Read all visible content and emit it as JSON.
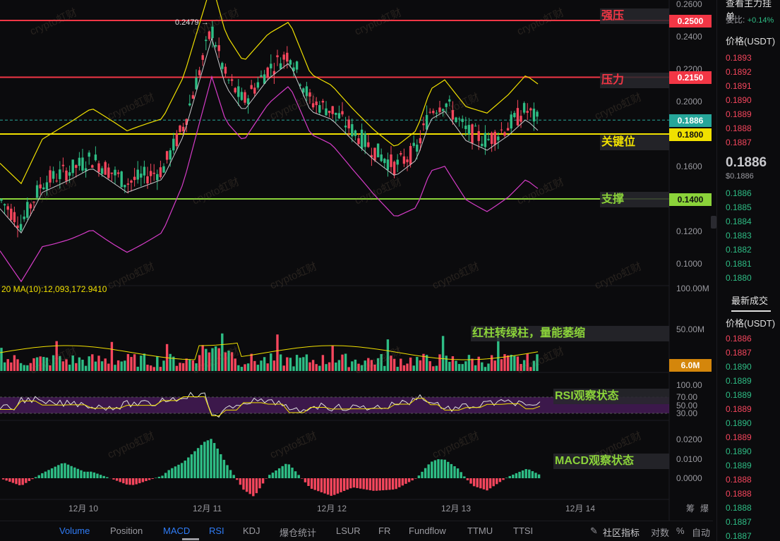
{
  "chart_data": {
    "type": "candlestick",
    "price_axis": {
      "ticks": [
        "0.2600",
        "0.2400",
        "0.2200",
        "0.2000",
        "0.1800",
        "0.1600",
        "0.1400",
        "0.1200",
        "0.1000"
      ],
      "range": [
        0.092,
        0.262
      ]
    },
    "dates": [
      "12月 10",
      "12月 11",
      "12月 12",
      "12月 13",
      "12月 14"
    ],
    "levels": [
      {
        "name": "强压",
        "price": "0.2500",
        "color": "#f23645"
      },
      {
        "name": "压力",
        "price": "0.2150",
        "color": "#f23645"
      },
      {
        "name": "关键位",
        "price": "0.1800",
        "color": "#f0e000"
      },
      {
        "name": "支撑",
        "price": "0.1400",
        "color": "#8bd33a"
      }
    ],
    "current_price": "0.1886",
    "high_annotation": "0.2479",
    "volume": {
      "ma_label": "20  MA(10):12,093,172.9410",
      "ticks": [
        "100.00M",
        "50.00M"
      ],
      "current": "6.0M",
      "annotation": "红柱转绿柱，量能萎缩"
    },
    "rsi": {
      "ticks": [
        "100.00",
        "70.00",
        "50.00",
        "30.00"
      ],
      "annotation": "RSI观察状态"
    },
    "macd": {
      "ticks": [
        "0.0200",
        "0.0100",
        "0.0000"
      ],
      "annotation": "MACD观察状态"
    }
  },
  "watermark_text": "crypto虹财",
  "bottom_tabs": [
    "Volume",
    "Position",
    "MACD",
    "RSI",
    "KDJ",
    "爆仓统计",
    "LSUR",
    "FR",
    "Fundflow",
    "TTMU",
    "TTSI"
  ],
  "active_tabs": [
    "Volume",
    "MACD",
    "RSI"
  ],
  "bottom_right": {
    "community": "社区指标",
    "scale": "对数",
    "percent": "%",
    "auto": "自动"
  },
  "top_right_axis": {
    "zoom": "筹",
    "burst": "爆"
  },
  "right_panel": {
    "title": "查看主力挂单",
    "weibi_label": "委比:",
    "weibi_value": "+0.14%",
    "price_header": "价格(USDT)",
    "asks": [
      "0.1893",
      "0.1892",
      "0.1891",
      "0.1890",
      "0.1889",
      "0.1888",
      "0.1887"
    ],
    "last_price": "0.1886",
    "last_price_usd": "$0.1886",
    "bids": [
      "0.1886",
      "0.1885",
      "0.1884",
      "0.1883",
      "0.1882",
      "0.1881",
      "0.1880"
    ],
    "trades_title": "最新成交",
    "trades_header": "价格(USDT)",
    "trades": [
      {
        "price": "0.1886",
        "side": "sell"
      },
      {
        "price": "0.1887",
        "side": "sell"
      },
      {
        "price": "0.1890",
        "side": "buy"
      },
      {
        "price": "0.1889",
        "side": "buy"
      },
      {
        "price": "0.1889",
        "side": "buy"
      },
      {
        "price": "0.1889",
        "side": "sell"
      },
      {
        "price": "0.1890",
        "side": "buy"
      },
      {
        "price": "0.1889",
        "side": "sell"
      },
      {
        "price": "0.1890",
        "side": "buy"
      },
      {
        "price": "0.1889",
        "side": "buy"
      },
      {
        "price": "0.1888",
        "side": "sell"
      },
      {
        "price": "0.1888",
        "side": "sell"
      },
      {
        "price": "0.1888",
        "side": "buy"
      },
      {
        "price": "0.1887",
        "side": "buy"
      },
      {
        "price": "0.1887",
        "side": "buy"
      }
    ]
  }
}
